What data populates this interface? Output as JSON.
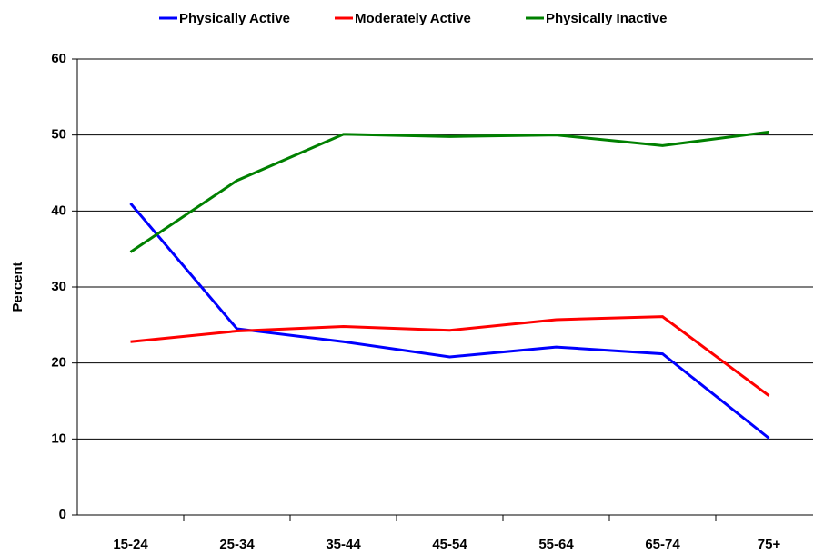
{
  "chart_data": {
    "type": "line",
    "categories": [
      "15-24",
      "25-34",
      "35-44",
      "45-54",
      "55-64",
      "65-74",
      "75+"
    ],
    "series": [
      {
        "name": "Physically Active",
        "color": "#0000ff",
        "values": [
          41,
          24.5,
          22.8,
          20.8,
          22.1,
          21.2,
          10.1
        ]
      },
      {
        "name": "Moderately Active",
        "color": "#ff0000",
        "values": [
          22.8,
          24.2,
          24.8,
          24.3,
          25.7,
          26.1,
          15.7
        ]
      },
      {
        "name": "Physically Inactive",
        "color": "#008000",
        "values": [
          34.6,
          44,
          50.1,
          49.8,
          50,
          48.6,
          50.4
        ]
      }
    ],
    "ylabel": "Percent",
    "ylim": [
      0,
      60
    ],
    "yticks": [
      0,
      10,
      20,
      30,
      40,
      50,
      60
    ],
    "grid": true,
    "legend": "top"
  }
}
